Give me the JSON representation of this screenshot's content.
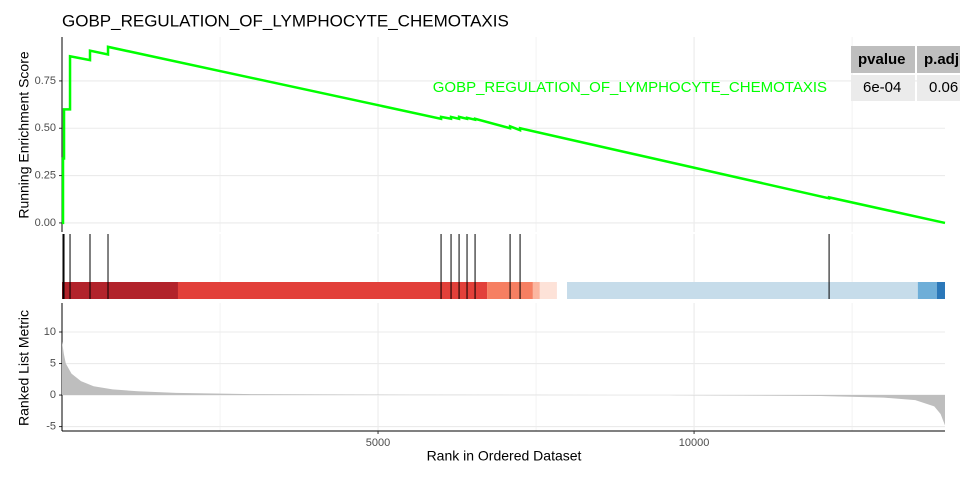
{
  "chart_data": {
    "type": "gsea",
    "title": "GOBP_REGULATION_OF_LYMPHOCYTE_CHEMOTAXIS",
    "annotation": "GOBP_REGULATION_OF_LYMPHOCYTE_CHEMOTAXIS",
    "x_label": "Rank in Ordered Dataset",
    "xlim": [
      0,
      13970
    ],
    "xticks": [
      5000,
      10000
    ],
    "x_minor_grid": [
      2500,
      7500,
      12500
    ],
    "grid": true,
    "running_score": {
      "y_label": "Running Enrichment Score",
      "color": "#00ff00",
      "ylim": [
        -0.048,
        0.982
      ],
      "yticks": [
        {
          "value": 0,
          "label": "0.00"
        },
        {
          "value": 0.25,
          "label": "0.25"
        },
        {
          "value": 0.5,
          "label": "0.50"
        },
        {
          "value": 0.75,
          "label": "0.75"
        }
      ],
      "x": [
        0,
        16,
        16,
        32,
        32,
        127,
        127,
        443,
        443,
        728,
        728,
        5997,
        5997,
        6155,
        6155,
        6282,
        6282,
        6408,
        6408,
        6535,
        6535,
        7089,
        7089,
        7247,
        7247,
        12136,
        12136,
        13970
      ],
      "values": [
        0,
        0,
        0.34,
        0.34,
        0.6,
        0.6,
        0.88,
        0.86,
        0.91,
        0.89,
        0.93,
        0.55,
        0.56,
        0.55,
        0.56,
        0.55,
        0.56,
        0.55,
        0.555,
        0.545,
        0.55,
        0.5,
        0.51,
        0.49,
        0.5,
        0.13,
        0.135,
        0
      ]
    },
    "hits": [
      16,
      32,
      127,
      443,
      728,
      5997,
      6155,
      6282,
      6408,
      6535,
      7089,
      7247,
      12136
    ],
    "color_bands": [
      {
        "start": 0,
        "end": 1835,
        "color": "#b2232b"
      },
      {
        "start": 1835,
        "end": 6725,
        "color": "#e2403a"
      },
      {
        "start": 6725,
        "end": 7450,
        "color": "#f67f62"
      },
      {
        "start": 7450,
        "end": 7560,
        "color": "#fbb6a0"
      },
      {
        "start": 7560,
        "end": 7830,
        "color": "#fde2d8"
      },
      {
        "start": 7990,
        "end": 13540,
        "color": "#c6dcea"
      },
      {
        "start": 13540,
        "end": 13840,
        "color": "#6eaed8"
      },
      {
        "start": 13840,
        "end": 13970,
        "color": "#2b78b9"
      }
    ],
    "ranked_metric": {
      "y_label": "Ranked List Metric",
      "color": "#bebebe",
      "ylim": [
        -5.7,
        14.6
      ],
      "yticks": [
        -5,
        0,
        5,
        10
      ],
      "x": [
        0,
        30,
        60,
        150,
        300,
        500,
        800,
        1200,
        1800,
        3000,
        5500,
        8800,
        8850,
        9600,
        9700,
        12000,
        13000,
        13500,
        13800,
        13900,
        13970
      ],
      "values": [
        8.5,
        6.5,
        5,
        3.4,
        2.2,
        1.4,
        0.9,
        0.6,
        0.35,
        0.15,
        0.05,
        0.01,
        0,
        0,
        -0.02,
        -0.15,
        -0.4,
        -0.8,
        -1.8,
        -3,
        -4.8
      ]
    },
    "table": {
      "header": [
        "pvalue",
        "p.adj"
      ],
      "row": [
        "6e-04",
        "0.06"
      ]
    }
  }
}
